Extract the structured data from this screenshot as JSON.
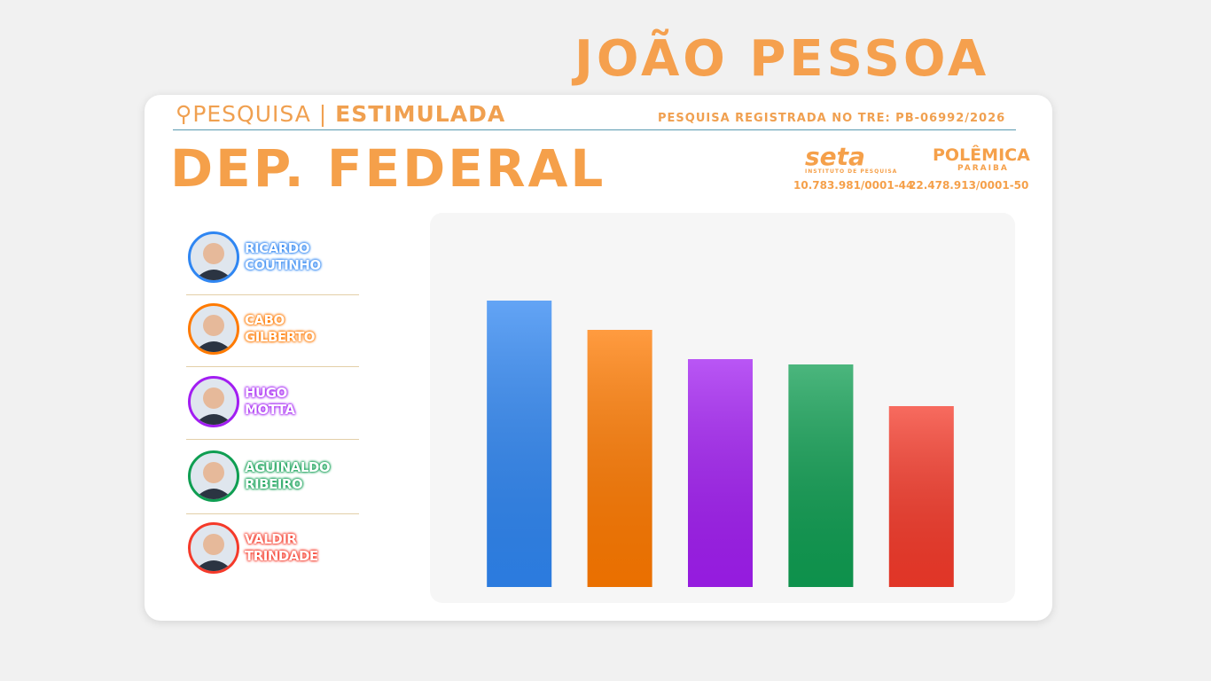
{
  "header": {
    "title": "JOÃO PESSOA",
    "survey": "PESQUISA",
    "survey_kind": "ESTIMULADA",
    "registration": "PESQUISA REGISTRADA NO TRE: PB-06992/2026",
    "office": "DEP. FEDERAL",
    "institute": "seta",
    "institute_sub": "INSTITUTO DE PESQUISA",
    "institute_id": "10.783.981/0001-44",
    "publisher": "POLÊMICA",
    "publisher_sub": "PARAIBA",
    "publisher_id": "22.478.913/0001-50"
  },
  "chart_data": {
    "type": "bar",
    "categories": [
      "RICARDO COUTINHO",
      "CABO GILBERTO",
      "HUGO MOTTA",
      "AGUINALDO RIBEIRO",
      "VALDIR TRINDADE"
    ],
    "values": [
      323,
      290,
      257,
      251,
      204
    ],
    "colors": [
      "#2f86f2",
      "#ff7a00",
      "#a21ef2",
      "#0f9e52",
      "#f53a2a"
    ],
    "ylim": [
      0,
      420
    ]
  }
}
